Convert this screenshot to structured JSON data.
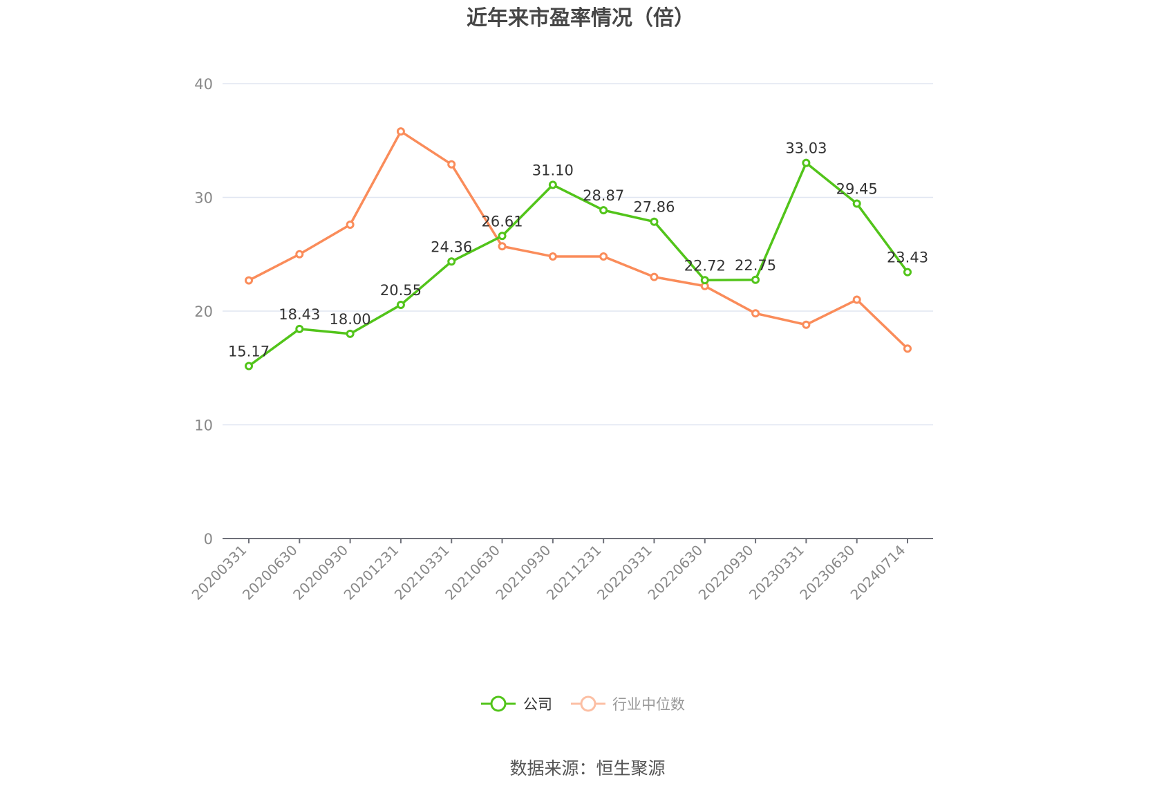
{
  "title": "近年来市盈率情况（倍）",
  "source": "数据来源：恒生聚源",
  "legend": {
    "items": [
      {
        "label": "公司",
        "color": "#52c41a"
      },
      {
        "label": "行业中位数",
        "color": "#fa8c5a"
      }
    ]
  },
  "chart_data": {
    "type": "line",
    "title": "近年来市盈率情况（倍）",
    "xlabel": "",
    "ylabel": "",
    "ylim": [
      0,
      40
    ],
    "yticks": [
      0,
      10,
      20,
      30,
      40
    ],
    "grid": true,
    "legend_position": "bottom",
    "categories": [
      "20200331",
      "20200630",
      "20200930",
      "20201231",
      "20210331",
      "20210630",
      "20210930",
      "20211231",
      "20220331",
      "20220630",
      "20220930",
      "20230331",
      "20230630",
      "20240714"
    ],
    "series": [
      {
        "name": "公司",
        "color": "#52c41a",
        "show_labels": true,
        "values": [
          15.17,
          18.43,
          18.0,
          20.55,
          24.36,
          26.61,
          31.1,
          28.87,
          27.86,
          22.72,
          22.75,
          33.03,
          29.45,
          23.43
        ]
      },
      {
        "name": "行业中位数",
        "color": "#fa8c5a",
        "show_labels": false,
        "values": [
          22.7,
          25.0,
          27.6,
          35.8,
          32.9,
          25.7,
          24.8,
          24.8,
          23.0,
          22.2,
          19.8,
          18.8,
          21.0,
          16.7
        ]
      }
    ],
    "annotations": [
      "数据来源：恒生聚源"
    ]
  }
}
